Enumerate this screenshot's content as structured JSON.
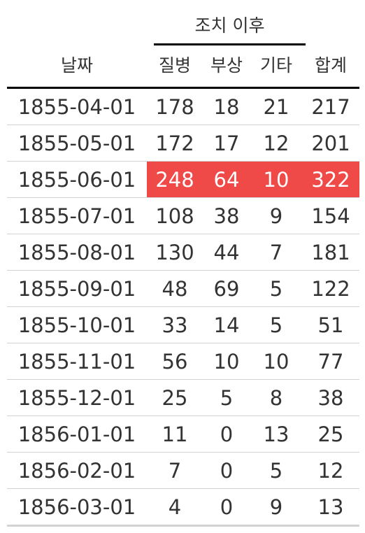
{
  "table": {
    "spanner_label": "조치 이후",
    "columns": {
      "date": "날짜",
      "illness": "질병",
      "wounds": "부상",
      "other": "기타",
      "total": "합계"
    },
    "highlight_color": "#f04a48",
    "rows": [
      {
        "date": "1855-04-01",
        "illness": "178",
        "wounds": "18",
        "other": "21",
        "total": "217",
        "highlighted": false
      },
      {
        "date": "1855-05-01",
        "illness": "172",
        "wounds": "17",
        "other": "12",
        "total": "201",
        "highlighted": false
      },
      {
        "date": "1855-06-01",
        "illness": "248",
        "wounds": "64",
        "other": "10",
        "total": "322",
        "highlighted": true
      },
      {
        "date": "1855-07-01",
        "illness": "108",
        "wounds": "38",
        "other": "9",
        "total": "154",
        "highlighted": false
      },
      {
        "date": "1855-08-01",
        "illness": "130",
        "wounds": "44",
        "other": "7",
        "total": "181",
        "highlighted": false
      },
      {
        "date": "1855-09-01",
        "illness": "48",
        "wounds": "69",
        "other": "5",
        "total": "122",
        "highlighted": false
      },
      {
        "date": "1855-10-01",
        "illness": "33",
        "wounds": "14",
        "other": "5",
        "total": "51",
        "highlighted": false
      },
      {
        "date": "1855-11-01",
        "illness": "56",
        "wounds": "10",
        "other": "10",
        "total": "77",
        "highlighted": false
      },
      {
        "date": "1855-12-01",
        "illness": "25",
        "wounds": "5",
        "other": "8",
        "total": "38",
        "highlighted": false
      },
      {
        "date": "1856-01-01",
        "illness": "11",
        "wounds": "0",
        "other": "13",
        "total": "25",
        "highlighted": false
      },
      {
        "date": "1856-02-01",
        "illness": "7",
        "wounds": "0",
        "other": "5",
        "total": "12",
        "highlighted": false
      },
      {
        "date": "1856-03-01",
        "illness": "4",
        "wounds": "0",
        "other": "9",
        "total": "13",
        "highlighted": false
      }
    ]
  }
}
